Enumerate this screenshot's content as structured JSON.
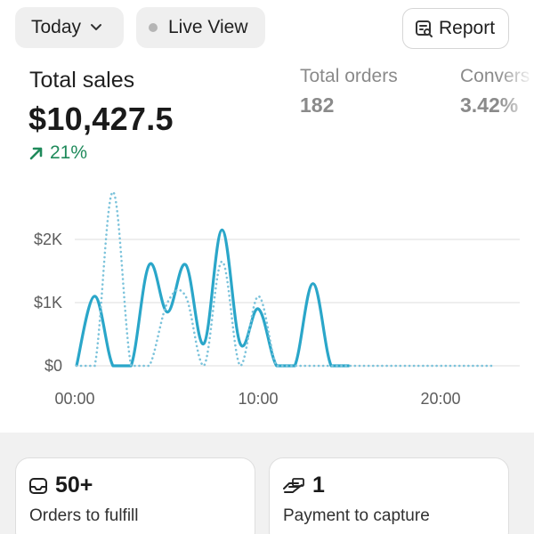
{
  "header": {
    "date_filter_label": "Today",
    "live_view_label": "Live View",
    "report_label": "Report"
  },
  "metrics": {
    "total_sales": {
      "label": "Total sales",
      "value": "$10,427.5",
      "change": "21%"
    },
    "total_orders": {
      "label": "Total orders",
      "value": "182"
    },
    "conversion": {
      "label": "Convers",
      "value": "3.42%"
    }
  },
  "chart_data": {
    "type": "line",
    "x_ticks": [
      "00:00",
      "10:00",
      "20:00"
    ],
    "y_ticks": [
      "$0",
      "$1K",
      "$2K"
    ],
    "xlim": [
      0,
      23
    ],
    "ylim": [
      0,
      2000
    ],
    "series": [
      {
        "style": "solid",
        "color": "#2aa6c9",
        "x": [
          0,
          1,
          2,
          3,
          4,
          5,
          6,
          7,
          8,
          9,
          10,
          11,
          12,
          13,
          14,
          15
        ],
        "values": [
          0,
          1100,
          0,
          0,
          1600,
          850,
          1600,
          350,
          2150,
          350,
          900,
          0,
          0,
          1300,
          0,
          0
        ]
      },
      {
        "style": "dotted",
        "color": "#7cc3db",
        "x": [
          0,
          1,
          2,
          3,
          4,
          5,
          6,
          7,
          8,
          9,
          10,
          11,
          12,
          13,
          14,
          15,
          16,
          17,
          18,
          19,
          20,
          21,
          22,
          23
        ],
        "values": [
          0,
          0,
          2750,
          0,
          0,
          1000,
          1100,
          0,
          1650,
          0,
          1100,
          0,
          0,
          0,
          0,
          0,
          0,
          0,
          0,
          0,
          0,
          0,
          0,
          0
        ]
      }
    ],
    "colors": {
      "grid": "#e3e3e3",
      "axis": "#cfcfcf"
    }
  },
  "cards": {
    "orders": {
      "value": "50+",
      "label": "Orders to fulfill"
    },
    "payments": {
      "value": "1",
      "label": "Payment to capture"
    }
  },
  "colors": {
    "trend_up": "#1f8a5b",
    "accent": "#2aa6c9"
  }
}
